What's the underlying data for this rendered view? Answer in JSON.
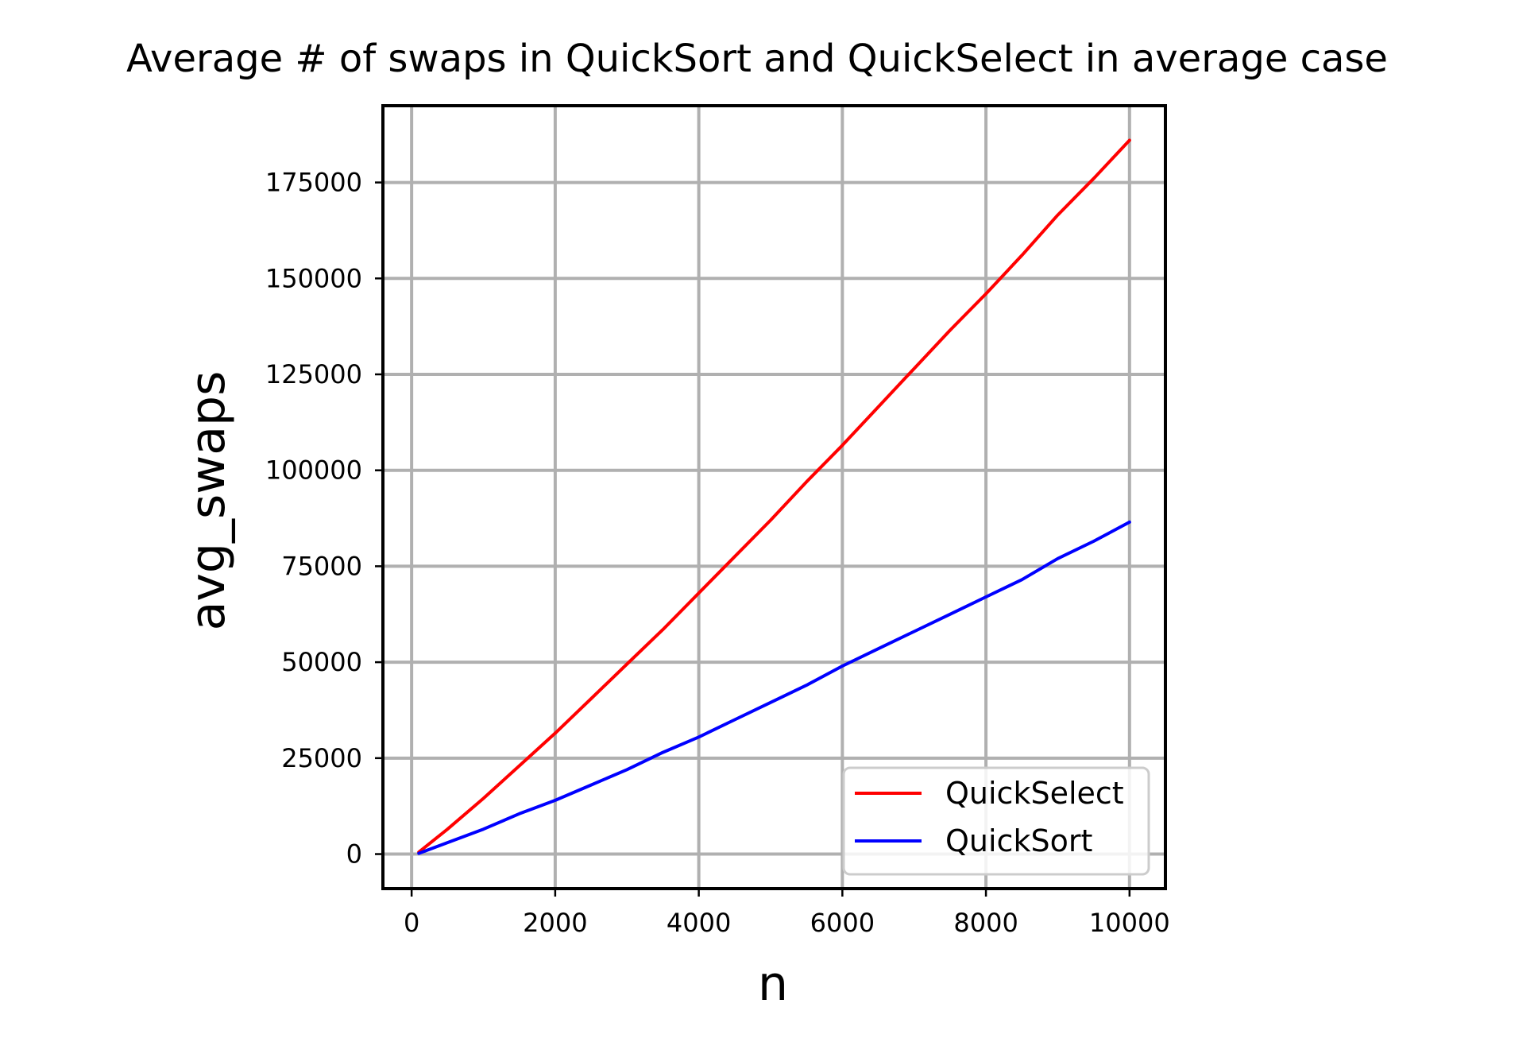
{
  "chart_data": {
    "type": "line",
    "title": "Average # of swaps in QuickSort and QuickSelect in average case",
    "xlabel": "n",
    "ylabel": "avg_swaps",
    "xlim": [
      -400,
      10500
    ],
    "ylim": [
      -9000,
      195000
    ],
    "xticks": [
      0,
      2000,
      4000,
      6000,
      8000,
      10000
    ],
    "yticks": [
      0,
      25000,
      50000,
      75000,
      100000,
      125000,
      150000,
      175000
    ],
    "grid": true,
    "legend_position": "lower-right",
    "x": [
      100,
      500,
      1000,
      1500,
      2000,
      2500,
      3000,
      3500,
      4000,
      4500,
      5000,
      5500,
      6000,
      6500,
      7000,
      7500,
      8000,
      8500,
      9000,
      9500,
      10000
    ],
    "series": [
      {
        "name": "QuickSelect",
        "color": "#ff0000",
        "values": [
          500,
          6500,
          14500,
          23000,
          31500,
          40500,
          49500,
          58500,
          68000,
          77500,
          87000,
          97000,
          106500,
          116500,
          126500,
          136500,
          146000,
          156000,
          166500,
          176000,
          186000
        ]
      },
      {
        "name": "QuickSort",
        "color": "#0000ff",
        "values": [
          200,
          3000,
          6500,
          10500,
          14000,
          18000,
          22000,
          26500,
          30500,
          35000,
          39500,
          44000,
          49000,
          53500,
          58000,
          62500,
          67000,
          71500,
          77000,
          81500,
          86500
        ]
      }
    ]
  }
}
